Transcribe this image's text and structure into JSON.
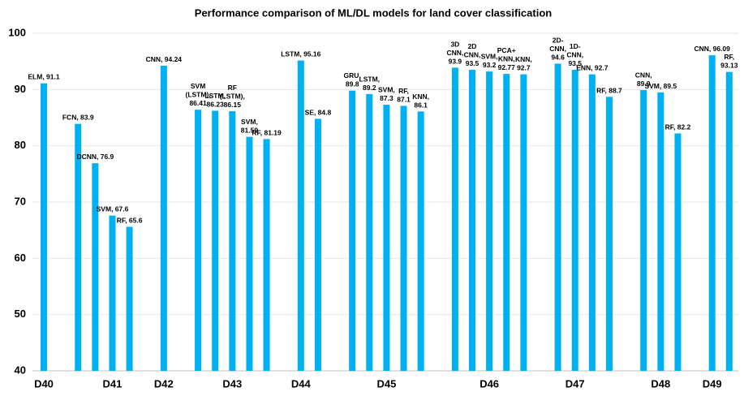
{
  "chart_data": {
    "type": "bar",
    "title": "Performance comparison of ML/DL models for land cover classification",
    "color": "#00b0f0",
    "grid": true,
    "ylim": [
      40,
      100
    ],
    "yticks": [
      40,
      50,
      60,
      70,
      80,
      90,
      100
    ],
    "categories": [
      "D40",
      null,
      null,
      null,
      "D41",
      null,
      null,
      "D42",
      null,
      null,
      null,
      "D43",
      null,
      null,
      null,
      "D44",
      null,
      null,
      null,
      null,
      "D45",
      null,
      null,
      null,
      null,
      null,
      "D46",
      null,
      null,
      null,
      null,
      "D47",
      null,
      null,
      null,
      null,
      "D48",
      null,
      null,
      "D49",
      null
    ],
    "values": [
      91.1,
      null,
      83.9,
      76.9,
      67.6,
      65.6,
      null,
      94.24,
      null,
      86.41,
      86.23,
      86.15,
      81.59,
      81.19,
      null,
      95.16,
      84.8,
      null,
      89.8,
      89.2,
      87.3,
      87.1,
      86.1,
      null,
      93.9,
      93.5,
      93.2,
      92.77,
      92.7,
      null,
      94.6,
      93.5,
      92.7,
      88.7,
      null,
      89.9,
      89.5,
      82.2,
      null,
      96.09,
      93.13
    ],
    "value_labels": [
      "ELM, 91.1",
      null,
      "FCN, 83.9",
      "DCNN, 76.9",
      "SVM, 67.6",
      "RF, 65.6",
      null,
      "CNN, 94.24",
      null,
      "SVM\n(LSTM),\n86.41",
      "LSTM,\n86.23",
      "RF\n(LSTM),\n86.15",
      "SVM,\n81.59",
      "RF, 81.19",
      null,
      "LSTM, 95.16",
      "SE, 84.8",
      null,
      "GRU,\n89.8",
      "LSTM,\n89.2",
      "SVM,\n87.3",
      "RF,\n87.1",
      "KNN,\n86.1",
      null,
      "3D\nCNN,\n93.9",
      "2D\nCNN,\n93.5",
      "SVM,\n93.2",
      "PCA+\nKNN,\n92.77",
      "KNN,\n92.7",
      null,
      "2D-\nCNN,\n94.6",
      "1D-\nCNN,\n93.5",
      "ENN, 92.7",
      "RF, 88.7",
      null,
      "CNN,\n89.9",
      "SVM, 89.5",
      "RF, 82.2",
      null,
      "CNN, 96.09",
      "RF,\n93.13"
    ]
  }
}
